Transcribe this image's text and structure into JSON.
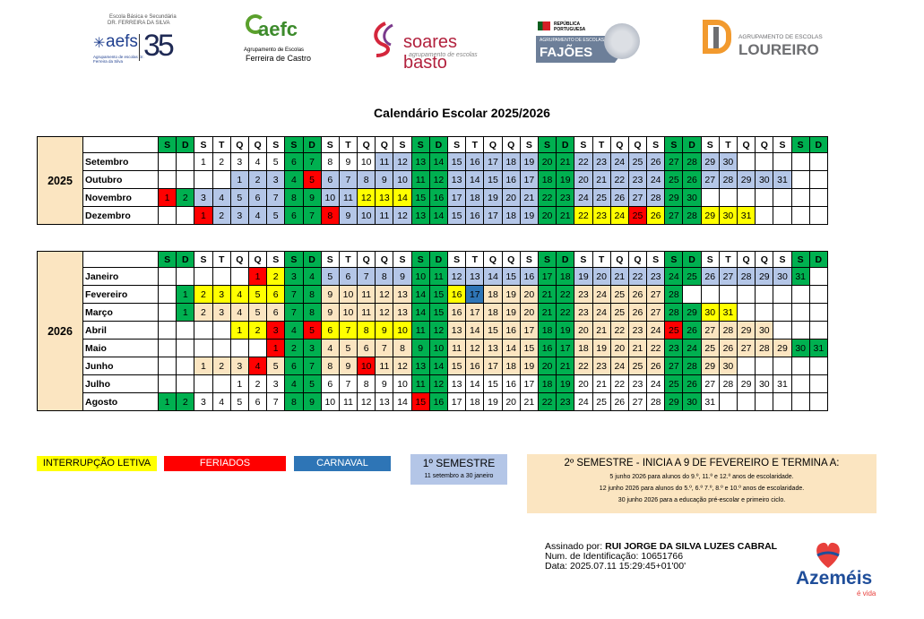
{
  "colors": {
    "weekend": "#00b050",
    "holiday": "#ff0000",
    "interruption": "#ffff00",
    "carnival": "#2e75b6",
    "sem1": "#b4c6e7",
    "sem2": "#fbe5c1",
    "header_bg": "#ffffff"
  },
  "logos": {
    "aefs_top": "Escola Básica e Secundária",
    "aefs_top2": "DR. FERREIRA DA SILVA",
    "aefs_main": "aefs",
    "aefs_sub": "Agrupamento de escolas Dr. Ferreira da Silva",
    "aefs_number": "35",
    "aefc_main": "aefc",
    "aefc_sub1": "Agrupamento de Escolas",
    "aefc_sub2": "Ferreira de Castro",
    "sb_main": "soares basto",
    "sb_sub": "agrupamento de escolas",
    "fajoes_top": "REPÚBLICA PORTUGUESA",
    "fajoes_sub": "AGRUPAMENTO DE ESCOLAS",
    "fajoes_main": "FAJÕES",
    "loureiro_sub": "AGRUPAMENTO DE ESCOLAS",
    "loureiro_main": "LOUREIRO"
  },
  "title": "Calendário Escolar 2025/2026",
  "header_days": [
    "S",
    "D",
    "S",
    "T",
    "Q",
    "Q",
    "S",
    "S",
    "D",
    "S",
    "T",
    "Q",
    "Q",
    "S",
    "S",
    "D",
    "S",
    "T",
    "Q",
    "Q",
    "S",
    "S",
    "D",
    "S",
    "T",
    "Q",
    "Q",
    "S",
    "S",
    "D",
    "S",
    "T",
    "Q",
    "Q",
    "S",
    "S",
    "D"
  ],
  "header_colors": [
    "w",
    "w",
    "",
    "",
    "",
    "",
    "",
    "w",
    "w",
    "",
    "",
    "",
    "",
    "",
    "w",
    "w",
    "",
    "",
    "",
    "",
    "",
    "w",
    "w",
    "",
    "",
    "",
    "",
    "",
    "w",
    "w",
    "",
    "",
    "",
    "",
    "",
    "w",
    "w"
  ],
  "blocks": [
    {
      "year": "2025",
      "months": [
        {
          "name": "Setembro",
          "start": 2,
          "days": 30,
          "marks": {
            "1": "",
            "2": "",
            "3": "",
            "4": "",
            "5": "",
            "6": "w",
            "7": "w",
            "8": "",
            "9": "",
            "10": "",
            "11": "b",
            "12": "b",
            "13": "w",
            "14": "w",
            "15": "b",
            "16": "b",
            "17": "b",
            "18": "b",
            "19": "b",
            "20": "w",
            "21": "w",
            "22": "b",
            "23": "b",
            "24": "b",
            "25": "b",
            "26": "b",
            "27": "w",
            "28": "w",
            "29": "b",
            "30": "b"
          }
        },
        {
          "name": "Outubro",
          "start": 4,
          "days": 31,
          "marks": {
            "1": "b",
            "2": "b",
            "3": "b",
            "4": "w",
            "5": "r",
            "6": "b",
            "7": "b",
            "8": "b",
            "9": "b",
            "10": "b",
            "11": "w",
            "12": "w",
            "13": "b",
            "14": "b",
            "15": "b",
            "16": "b",
            "17": "b",
            "18": "w",
            "19": "w",
            "20": "b",
            "21": "b",
            "22": "b",
            "23": "b",
            "24": "b",
            "25": "w",
            "26": "w",
            "27": "b",
            "28": "b",
            "29": "b",
            "30": "b",
            "31": "b"
          }
        },
        {
          "name": "Novembro",
          "start": 0,
          "days": 30,
          "marks": {
            "1": "r",
            "2": "w",
            "3": "b",
            "4": "b",
            "5": "b",
            "6": "b",
            "7": "b",
            "8": "w",
            "9": "w",
            "10": "b",
            "11": "b",
            "12": "y",
            "13": "y",
            "14": "y",
            "15": "w",
            "16": "w",
            "17": "b",
            "18": "b",
            "19": "b",
            "20": "b",
            "21": "b",
            "22": "w",
            "23": "w",
            "24": "b",
            "25": "b",
            "26": "b",
            "27": "b",
            "28": "b",
            "29": "w",
            "30": "w"
          }
        },
        {
          "name": "Dezembro",
          "start": 2,
          "days": 31,
          "marks": {
            "1": "r",
            "2": "b",
            "3": "b",
            "4": "b",
            "5": "b",
            "6": "w",
            "7": "w",
            "8": "r",
            "9": "b",
            "10": "b",
            "11": "b",
            "12": "b",
            "13": "w",
            "14": "w",
            "15": "b",
            "16": "b",
            "17": "b",
            "18": "b",
            "19": "b",
            "20": "w",
            "21": "w",
            "22": "y",
            "23": "y",
            "24": "y",
            "25": "r",
            "26": "y",
            "27": "w",
            "28": "w",
            "29": "y",
            "30": "y",
            "31": "y"
          }
        }
      ]
    },
    {
      "year": "2026",
      "months": [
        {
          "name": "Janeiro",
          "start": 5,
          "days": 31,
          "marks": {
            "1": "r",
            "2": "y",
            "3": "w",
            "4": "w",
            "5": "b",
            "6": "b",
            "7": "b",
            "8": "b",
            "9": "b",
            "10": "w",
            "11": "w",
            "12": "b",
            "13": "b",
            "14": "b",
            "15": "b",
            "16": "b",
            "17": "w",
            "18": "w",
            "19": "b",
            "20": "b",
            "21": "b",
            "22": "b",
            "23": "b",
            "24": "w",
            "25": "w",
            "26": "b",
            "27": "b",
            "28": "b",
            "29": "b",
            "30": "b",
            "31": "w"
          }
        },
        {
          "name": "Fevereiro",
          "start": 1,
          "days": 28,
          "marks": {
            "1": "w",
            "2": "y",
            "3": "y",
            "4": "y",
            "5": "y",
            "6": "y",
            "7": "w",
            "8": "w",
            "9": "p",
            "10": "p",
            "11": "p",
            "12": "p",
            "13": "p",
            "14": "w",
            "15": "w",
            "16": "y",
            "17": "c",
            "18": "p",
            "19": "p",
            "20": "p",
            "21": "w",
            "22": "w",
            "23": "p",
            "24": "p",
            "25": "p",
            "26": "p",
            "27": "p",
            "28": "w"
          }
        },
        {
          "name": "Março",
          "start": 1,
          "days": 31,
          "marks": {
            "1": "w",
            "2": "p",
            "3": "p",
            "4": "p",
            "5": "p",
            "6": "p",
            "7": "w",
            "8": "w",
            "9": "p",
            "10": "p",
            "11": "p",
            "12": "p",
            "13": "p",
            "14": "w",
            "15": "w",
            "16": "p",
            "17": "p",
            "18": "p",
            "19": "p",
            "20": "p",
            "21": "w",
            "22": "w",
            "23": "p",
            "24": "p",
            "25": "p",
            "26": "p",
            "27": "p",
            "28": "w",
            "29": "w",
            "30": "y",
            "31": "y"
          }
        },
        {
          "name": "Abril",
          "start": 4,
          "days": 30,
          "marks": {
            "1": "y",
            "2": "y",
            "3": "r",
            "4": "w",
            "5": "r",
            "6": "y",
            "7": "y",
            "8": "y",
            "9": "y",
            "10": "y",
            "11": "w",
            "12": "w",
            "13": "p",
            "14": "p",
            "15": "p",
            "16": "p",
            "17": "p",
            "18": "w",
            "19": "w",
            "20": "p",
            "21": "p",
            "22": "p",
            "23": "p",
            "24": "p",
            "25": "r",
            "26": "w",
            "27": "p",
            "28": "p",
            "29": "p",
            "30": "p"
          }
        },
        {
          "name": "Maio",
          "start": 6,
          "days": 31,
          "marks": {
            "1": "r",
            "2": "w",
            "3": "w",
            "4": "p",
            "5": "p",
            "6": "p",
            "7": "p",
            "8": "p",
            "9": "w",
            "10": "w",
            "11": "p",
            "12": "p",
            "13": "p",
            "14": "p",
            "15": "p",
            "16": "w",
            "17": "w",
            "18": "p",
            "19": "p",
            "20": "p",
            "21": "p",
            "22": "p",
            "23": "w",
            "24": "w",
            "25": "p",
            "26": "p",
            "27": "p",
            "28": "p",
            "29": "p",
            "30": "w",
            "31": "w"
          }
        },
        {
          "name": "Junho",
          "start": 2,
          "days": 30,
          "marks": {
            "1": "p",
            "2": "p",
            "3": "p",
            "4": "r",
            "5": "p",
            "6": "w",
            "7": "w",
            "8": "p",
            "9": "p",
            "10": "r",
            "11": "p",
            "12": "p",
            "13": "w",
            "14": "w",
            "15": "p",
            "16": "p",
            "17": "p",
            "18": "p",
            "19": "p",
            "20": "w",
            "21": "w",
            "22": "p",
            "23": "p",
            "24": "p",
            "25": "p",
            "26": "p",
            "27": "w",
            "28": "w",
            "29": "p",
            "30": "p"
          }
        },
        {
          "name": "Julho",
          "start": 4,
          "days": 31,
          "marks": {
            "4": "w",
            "5": "w",
            "11": "w",
            "12": "w",
            "18": "w",
            "19": "w",
            "25": "w",
            "26": "w"
          }
        },
        {
          "name": "Agosto",
          "start": 0,
          "days": 31,
          "marks": {
            "1": "w",
            "2": "w",
            "8": "w",
            "9": "w",
            "15": "r",
            "16": "w",
            "22": "w",
            "23": "w",
            "29": "w",
            "30": "w"
          }
        }
      ]
    }
  ],
  "legend": {
    "interruption": "INTERRUPÇÃO LETIVA",
    "holidays": "FERIADOS",
    "carnival": "CARNAVAL",
    "sem1_title": "1º SEMESTRE",
    "sem1_sub": "11 setembro a 30 janeiro",
    "sem2_title": "2º SEMESTRE - INICIA A 9 DE FEVEREIRO E TERMINA A:",
    "sem2_line1": "5 junho 2026 para alunos do 9.º, 11.º e 12.º anos de escolaridade.",
    "sem2_line2": "12 junho 2026 para alunos do 5.º, 6.º 7.º, 8.º e 10.º anos de escolaridade.",
    "sem2_line3": "30 junho 2026 para a educação pré-escolar e primeiro ciclo."
  },
  "signature": {
    "label": "Assinado por:",
    "name": "RUI JORGE DA SILVA LUZES CABRAL",
    "id_line": "Num. de Identificação: 10651766",
    "date_line": "Data: 2025.07.11 15:29:45+01'00'"
  },
  "footer_logo": {
    "main": "Azeméis",
    "sub": "é vida"
  }
}
